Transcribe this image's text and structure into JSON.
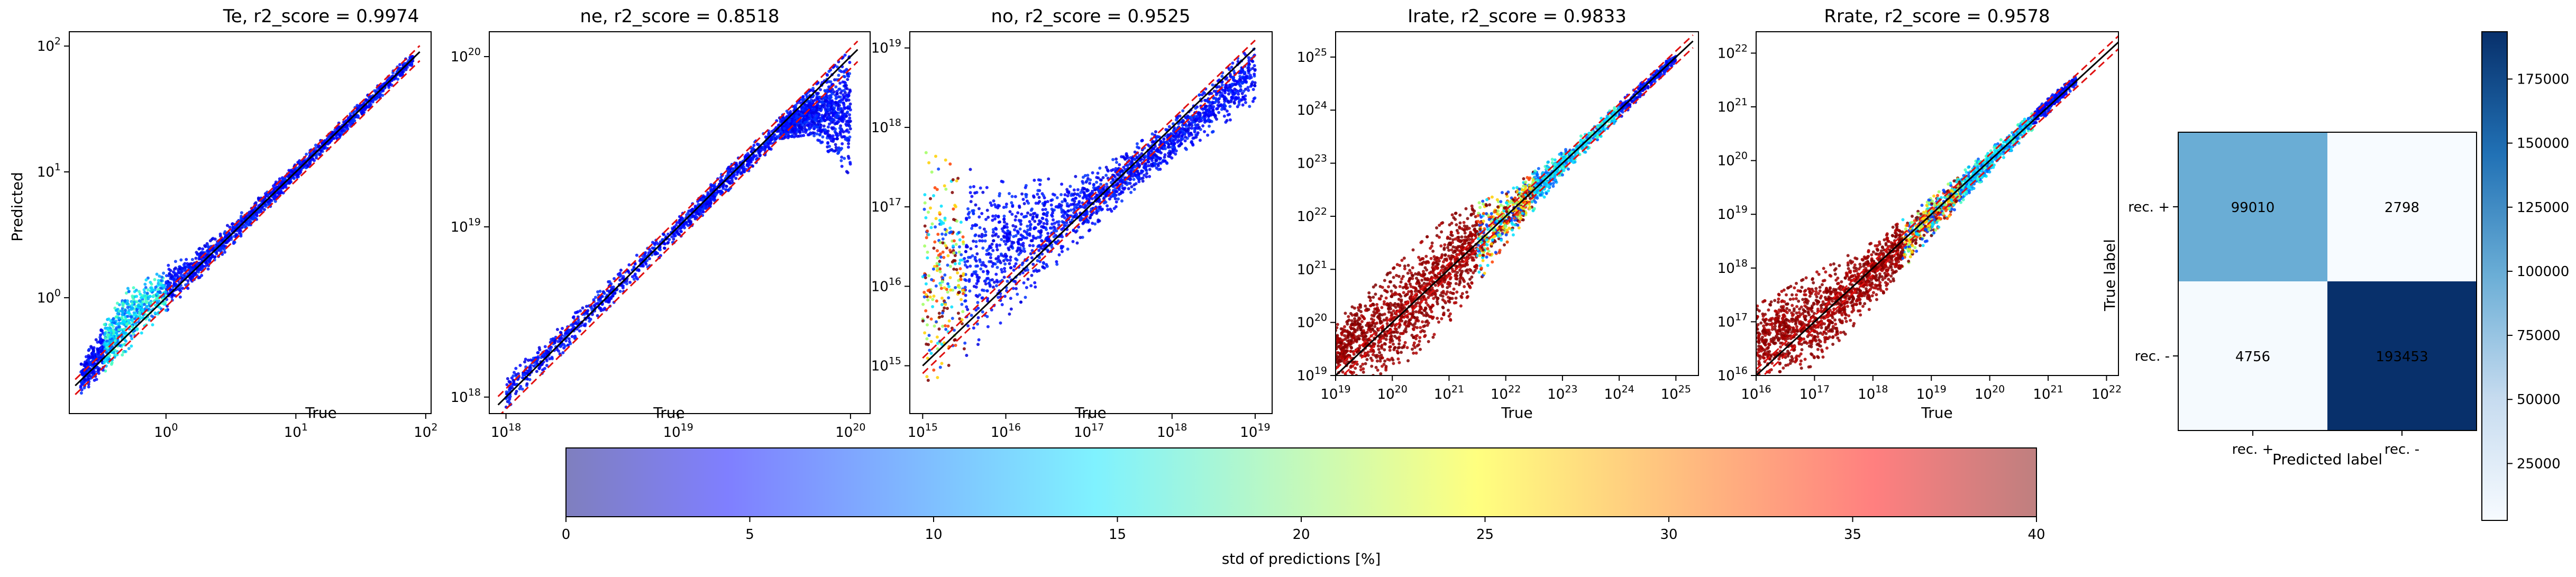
{
  "chart_data": [
    {
      "type": "scatter",
      "title": "Te, r2_score = 0.9974",
      "xlabel": "True",
      "ylabel": "Predicted",
      "scale": "log",
      "xlim": [
        0.18,
        110
      ],
      "ylim": [
        0.12,
        130
      ],
      "xticks": [
        {
          "v": 1,
          "e": "0"
        },
        {
          "v": 10,
          "e": "1"
        },
        {
          "v": 100,
          "e": "2"
        }
      ],
      "yticks": [
        {
          "v": 1,
          "e": "0"
        },
        {
          "v": 10,
          "e": "1"
        },
        {
          "v": 100,
          "e": "2"
        }
      ],
      "diagonal": [
        [
          0.2,
          0.2
        ],
        [
          90,
          90
        ]
      ],
      "band": [
        0.85,
        1.12
      ],
      "cloud": [
        {
          "x": 0.22,
          "ylo": 0.17,
          "yhi": 0.3,
          "c": "blue"
        },
        {
          "x": 0.5,
          "ylo": 0.38,
          "yhi": 1.2,
          "c": "cyan"
        },
        {
          "x": 2,
          "ylo": 1.6,
          "yhi": 2.6,
          "c": "blue"
        },
        {
          "x": 10,
          "ylo": 8.5,
          "yhi": 11.5,
          "c": "blue"
        },
        {
          "x": 80,
          "ylo": 70,
          "yhi": 90,
          "c": "blue"
        }
      ]
    },
    {
      "type": "scatter",
      "title": "ne, r2_score = 0.8518",
      "xlabel": "True",
      "ylabel": "",
      "scale": "log",
      "xlim": [
        8e+17,
        1.3e+20
      ],
      "ylim": [
        8e+17,
        1.4e+20
      ],
      "xticks": [
        {
          "v": 1e+18,
          "e": "18"
        },
        {
          "v": 1e+19,
          "e": "19"
        },
        {
          "v": 1e+20,
          "e": "20"
        }
      ],
      "yticks": [
        {
          "v": 1e+18,
          "e": "18"
        },
        {
          "v": 1e+19,
          "e": "19"
        },
        {
          "v": 1e+20,
          "e": "20"
        }
      ],
      "diagonal": [
        [
          9e+17,
          9e+17
        ],
        [
          1.1e+20,
          1.1e+20
        ]
      ],
      "band": [
        0.85,
        1.12
      ],
      "cloud": [
        {
          "x": 1e+18,
          "ylo": 8.5e+17,
          "yhi": 1.3e+18,
          "c": "blue"
        },
        {
          "x": 1e+19,
          "ylo": 8.5e+18,
          "yhi": 1.15e+19,
          "c": "blue"
        },
        {
          "x": 4e+19,
          "ylo": 3.3e+19,
          "yhi": 4.5e+19,
          "c": "blue"
        },
        {
          "x": 6e+19,
          "ylo": 3.5e+19,
          "yhi": 6.5e+19,
          "c": "blue"
        },
        {
          "x": 1e+20,
          "ylo": 2e+19,
          "yhi": 1.1e+20,
          "c": "blue"
        }
      ]
    },
    {
      "type": "scatter",
      "title": "no, r2_score = 0.9525",
      "xlabel": "True",
      "ylabel": "",
      "scale": "log",
      "xlim": [
        700000000000000.0,
        1.6e+19
      ],
      "ylim": [
        250000000000000.0,
        1.6e+19
      ],
      "xticks": [
        {
          "v": 1000000000000000.0,
          "e": "15"
        },
        {
          "v": 1e+16,
          "e": "16"
        },
        {
          "v": 1e+17,
          "e": "17"
        },
        {
          "v": 1e+18,
          "e": "18"
        },
        {
          "v": 1e+19,
          "e": "19"
        }
      ],
      "yticks": [
        {
          "v": 1000000000000000.0,
          "e": "15"
        },
        {
          "v": 1e+16,
          "e": "16"
        },
        {
          "v": 1e+17,
          "e": "17"
        },
        {
          "v": 1e+18,
          "e": "18"
        },
        {
          "v": 1e+19,
          "e": "19"
        }
      ],
      "diagonal": [
        [
          1000000000000000.0,
          1000000000000000.0
        ],
        [
          1e+19,
          1e+19
        ]
      ],
      "band": [
        0.8,
        1.25
      ],
      "cloud": [
        {
          "x": 1000000000000000.0,
          "ylo": 400000000000000.0,
          "yhi": 5e+17,
          "c": "mixed"
        },
        {
          "x": 1e+16,
          "ylo": 4000000000000000.0,
          "yhi": 2e+17,
          "c": "blue"
        },
        {
          "x": 1e+17,
          "ylo": 5e+16,
          "yhi": 2.5e+17,
          "c": "blue"
        },
        {
          "x": 1e+18,
          "ylo": 4e+17,
          "yhi": 1.2e+18,
          "c": "blue"
        },
        {
          "x": 1e+19,
          "ylo": 2e+18,
          "yhi": 1.2e+19,
          "c": "blue"
        }
      ]
    },
    {
      "type": "scatter",
      "title": "Irate, r2_score = 0.9833",
      "xlabel": "True",
      "ylabel": "",
      "scale": "log",
      "xlim": [
        1e+19,
        2.5e+25
      ],
      "ylim": [
        1e+19,
        3e+25
      ],
      "xticks": [
        {
          "v": 1e+19,
          "e": "19"
        },
        {
          "v": 1e+20,
          "e": "20"
        },
        {
          "v": 1e+21,
          "e": "21"
        },
        {
          "v": 1e+22,
          "e": "22"
        },
        {
          "v": 1e+23,
          "e": "23"
        },
        {
          "v": 1e+24,
          "e": "24"
        },
        {
          "v": 1e+25,
          "e": "25"
        }
      ],
      "yticks": [
        {
          "v": 1e+19,
          "e": "19"
        },
        {
          "v": 1e+20,
          "e": "20"
        },
        {
          "v": 1e+21,
          "e": "21"
        },
        {
          "v": 1e+22,
          "e": "22"
        },
        {
          "v": 1e+23,
          "e": "23"
        },
        {
          "v": 1e+24,
          "e": "24"
        },
        {
          "v": 1e+25,
          "e": "25"
        }
      ],
      "diagonal": [
        [
          1e+19,
          1e+19
        ],
        [
          2e+25,
          2e+25
        ]
      ],
      "band": [
        0.75,
        1.3
      ],
      "cloud": [
        {
          "x": 1e+19,
          "ylo": 1e+19,
          "yhi": 1e+20,
          "c": "red"
        },
        {
          "x": 1e+20,
          "ylo": 1e+19,
          "yhi": 1e+21,
          "c": "red"
        },
        {
          "x": 1e+21,
          "ylo": 1e+20,
          "yhi": 1e+22,
          "c": "red"
        },
        {
          "x": 1e+22,
          "ylo": 3e+21,
          "yhi": 3e+22,
          "c": "mixed"
        },
        {
          "x": 1e+23,
          "ylo": 6e+22,
          "yhi": 1.6e+23,
          "c": "cyan"
        },
        {
          "x": 1e+25,
          "ylo": 8e+24,
          "yhi": 1.2e+25,
          "c": "blue"
        }
      ]
    },
    {
      "type": "scatter",
      "title": "Rrate, r2_score = 0.9578",
      "xlabel": "True",
      "ylabel": "",
      "scale": "log",
      "xlim": [
        1e+16,
        1.6e+22
      ],
      "ylim": [
        1e+16,
        2.5e+22
      ],
      "xticks": [
        {
          "v": 1e+16,
          "e": "16"
        },
        {
          "v": 1e+17,
          "e": "17"
        },
        {
          "v": 1e+18,
          "e": "18"
        },
        {
          "v": 1e+19,
          "e": "19"
        },
        {
          "v": 1e+20,
          "e": "20"
        },
        {
          "v": 1e+21,
          "e": "21"
        },
        {
          "v": 1e+22,
          "e": "22"
        }
      ],
      "yticks": [
        {
          "v": 1e+16,
          "e": "16"
        },
        {
          "v": 1e+17,
          "e": "17"
        },
        {
          "v": 1e+18,
          "e": "18"
        },
        {
          "v": 1e+19,
          "e": "19"
        },
        {
          "v": 1e+20,
          "e": "20"
        },
        {
          "v": 1e+21,
          "e": "21"
        },
        {
          "v": 1e+22,
          "e": "22"
        }
      ],
      "diagonal": [
        [
          1e+16,
          1e+16
        ],
        [
          2e+22,
          2e+22
        ]
      ],
      "band": [
        0.75,
        1.3
      ],
      "cloud": [
        {
          "x": 1e+16,
          "ylo": 1e+16,
          "yhi": 2e+17,
          "c": "red"
        },
        {
          "x": 1e+17,
          "ylo": 1.5e+16,
          "yhi": 8e+17,
          "c": "red"
        },
        {
          "x": 1e+18,
          "ylo": 2e+17,
          "yhi": 3e+18,
          "c": "red"
        },
        {
          "x": 1e+19,
          "ylo": 4e+18,
          "yhi": 2e+19,
          "c": "mixed"
        },
        {
          "x": 1e+20,
          "ylo": 6e+19,
          "yhi": 1.6e+20,
          "c": "cyan"
        },
        {
          "x": 3e+21,
          "ylo": 2.5e+21,
          "yhi": 4e+21,
          "c": "blue"
        }
      ]
    },
    {
      "type": "heatmap",
      "title": "",
      "xlabel": "Predicted label",
      "ylabel": "True label",
      "categories": [
        "rec. +",
        "rec. -"
      ],
      "values": [
        [
          99010,
          2798
        ],
        [
          4756,
          193453
        ]
      ],
      "colorbar_ticks": [
        25000,
        50000,
        75000,
        100000,
        125000,
        150000,
        175000
      ],
      "colorbar_range": [
        2798,
        193453
      ]
    }
  ],
  "colorbar": {
    "label": "std of predictions [%]",
    "range": [
      0,
      40
    ],
    "ticks": [
      0,
      5,
      10,
      15,
      20,
      25,
      30,
      35,
      40
    ]
  }
}
